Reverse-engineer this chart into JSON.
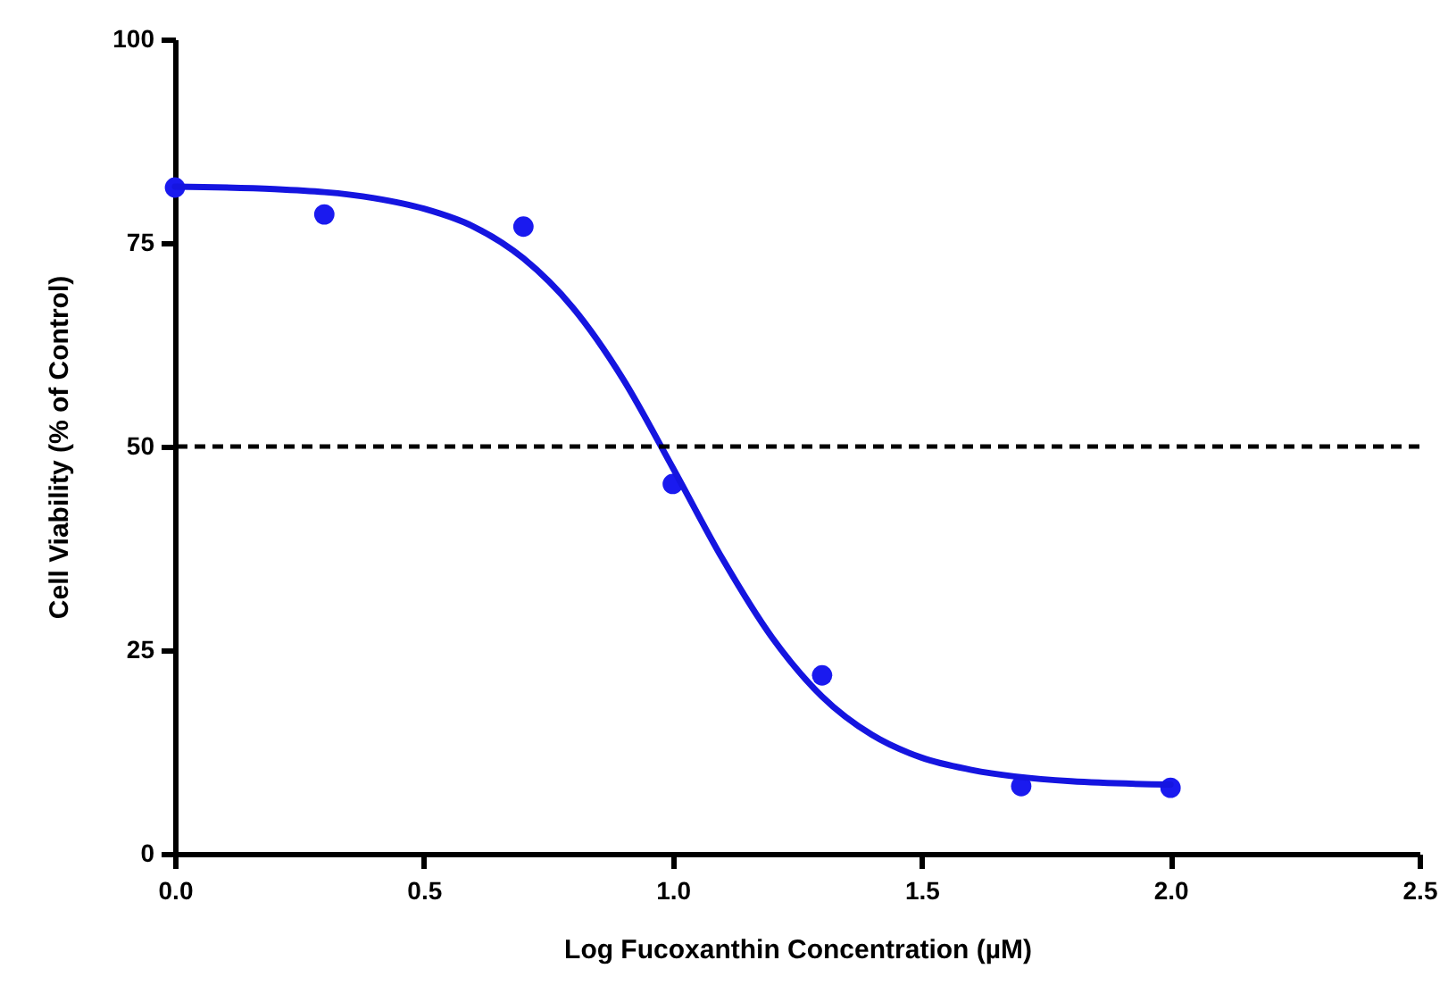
{
  "chart_data": {
    "type": "scatter",
    "xlabel": "Log Fucoxanthin Concentration (µM)",
    "ylabel": "Cell Viability   (% of Control)",
    "xlim": [
      0,
      2.5
    ],
    "xticks": [
      {
        "value": 0,
        "label": "0.0"
      },
      {
        "value": 0.5,
        "label": "0.5"
      },
      {
        "value": 1,
        "label": "1.0"
      },
      {
        "value": 1.5,
        "label": "1.5"
      },
      {
        "value": 2,
        "label": "2.0"
      },
      {
        "value": 2.5,
        "label": "2.5"
      }
    ],
    "ylim": [
      0,
      100
    ],
    "yticks": [
      0,
      25,
      50,
      75,
      100
    ],
    "grid": false,
    "series": [
      {
        "marker": "circle",
        "color": "#1a1aef",
        "x": [
          0,
          0.3,
          0.7,
          1.0,
          1.3,
          1.7,
          2.0
        ],
        "values": [
          81.8,
          78.5,
          77.0,
          45.4,
          21.9,
          8.3,
          8.1
        ]
      },
      {
        "type": "line",
        "marker": "none",
        "line_style": "solid",
        "color": "#1515e0",
        "x": [
          0,
          0.2,
          0.4,
          0.5,
          0.6,
          0.7,
          0.8,
          0.9,
          1.0,
          1.1,
          1.2,
          1.3,
          1.4,
          1.5,
          1.6,
          1.8,
          2.0
        ],
        "values": [
          81.9,
          81.6,
          80.5,
          79.2,
          77.0,
          73.1,
          67.0,
          58.3,
          47.4,
          36.2,
          26.5,
          19.3,
          14.6,
          11.8,
          10.3,
          8.9,
          8.5
        ]
      }
    ],
    "ref_lines": [
      {
        "axis": "y",
        "value": 50,
        "color": "#000000",
        "line_style": "dashed"
      }
    ]
  }
}
